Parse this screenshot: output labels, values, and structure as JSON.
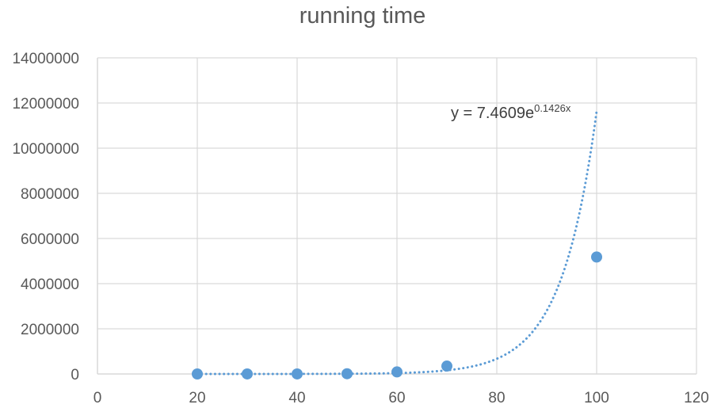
{
  "chart_data": {
    "type": "scatter",
    "title": "running time",
    "xlabel": "",
    "ylabel": "",
    "xlim": [
      0,
      120
    ],
    "ylim": [
      0,
      14000000
    ],
    "x_ticks": [
      "0",
      "20",
      "40",
      "60",
      "80",
      "100",
      "120"
    ],
    "y_ticks": [
      "0",
      "2000000",
      "4000000",
      "6000000",
      "8000000",
      "10000000",
      "12000000",
      "14000000"
    ],
    "grid": true,
    "legend": "none",
    "series": [
      {
        "x": [
          20,
          30,
          40,
          50,
          60,
          70,
          100
        ],
        "y": [
          100,
          500,
          2000,
          10000,
          90000,
          350000,
          5180000
        ],
        "color": "#5B9BD5"
      }
    ],
    "trendline": {
      "type": "exponential",
      "a": 7.4609,
      "b": 0.1426,
      "x_range": [
        20,
        100
      ],
      "style": "dotted",
      "color": "#5B9BD5",
      "equation": {
        "prefix": "y = 7.4609e",
        "exponent": "0.1426x"
      }
    }
  }
}
